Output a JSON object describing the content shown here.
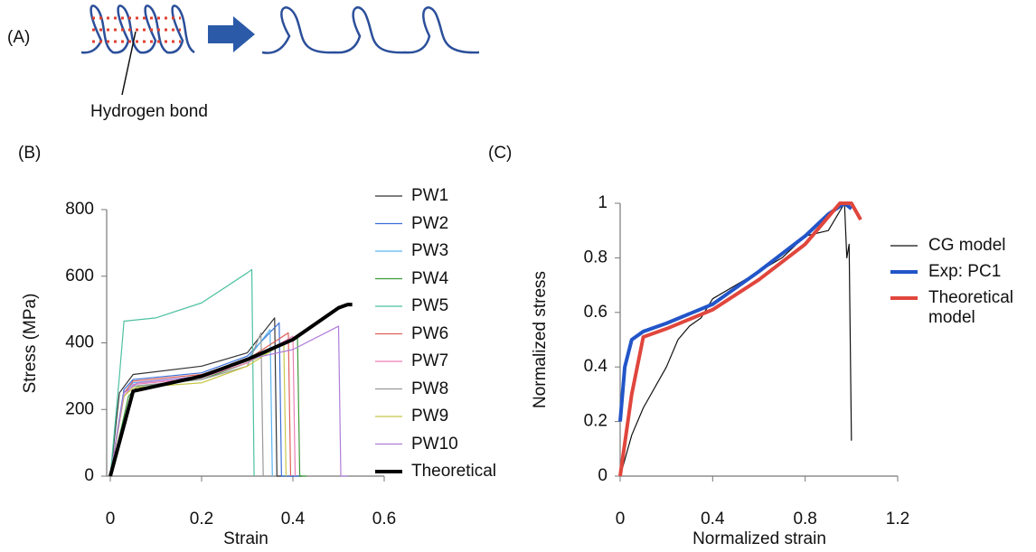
{
  "figure": {
    "panel_label": "(A)",
    "annotation": "Hydrogen bond"
  },
  "chart_data": [
    {
      "type": "line",
      "title": "(B)",
      "x_label": "Strain",
      "y_label": "Stress (MPa)",
      "xlim": [
        0,
        0.6
      ],
      "ylim": [
        0,
        800
      ],
      "xticks": [
        0,
        0.2,
        0.4,
        0.6
      ],
      "yticks": [
        0,
        200,
        400,
        600,
        800
      ],
      "series": [
        {
          "name": "PW1",
          "color": "#333333",
          "x": [
            0,
            0.02,
            0.05,
            0.2,
            0.3,
            0.36,
            0.365,
            0.42
          ],
          "values": [
            0,
            250,
            305,
            330,
            370,
            475,
            0,
            0
          ]
        },
        {
          "name": "PW2",
          "color": "#3a6fd8",
          "x": [
            0,
            0.03,
            0.05,
            0.2,
            0.3,
            0.37,
            0.375,
            0.42
          ],
          "values": [
            0,
            260,
            290,
            310,
            360,
            460,
            0,
            0
          ]
        },
        {
          "name": "PW3",
          "color": "#5ab4f0",
          "x": [
            0,
            0.03,
            0.05,
            0.2,
            0.3,
            0.35,
            0.355
          ],
          "values": [
            0,
            250,
            280,
            300,
            350,
            440,
            0
          ]
        },
        {
          "name": "PW4",
          "color": "#3c9a3c",
          "x": [
            0,
            0.04,
            0.06,
            0.2,
            0.3,
            0.41,
            0.415,
            0.43
          ],
          "values": [
            0,
            240,
            270,
            290,
            340,
            420,
            0,
            0
          ]
        },
        {
          "name": "PW5",
          "color": "#4cc0a0",
          "x": [
            0,
            0.02,
            0.03,
            0.1,
            0.2,
            0.3,
            0.31,
            0.315
          ],
          "values": [
            0,
            300,
            465,
            475,
            520,
            610,
            620,
            0
          ]
        },
        {
          "name": "PW6",
          "color": "#e0605a",
          "x": [
            0,
            0.03,
            0.05,
            0.2,
            0.3,
            0.39,
            0.395
          ],
          "values": [
            0,
            250,
            285,
            305,
            350,
            430,
            0
          ]
        },
        {
          "name": "PW7",
          "color": "#ec7fb4",
          "x": [
            0,
            0.03,
            0.05,
            0.2,
            0.3,
            0.4,
            0.405
          ],
          "values": [
            0,
            240,
            275,
            295,
            340,
            420,
            0
          ]
        },
        {
          "name": "PW8",
          "color": "#999999",
          "x": [
            0,
            0.03,
            0.05,
            0.2,
            0.3,
            0.33,
            0.335
          ],
          "values": [
            0,
            250,
            270,
            290,
            330,
            430,
            0
          ]
        },
        {
          "name": "PW9",
          "color": "#c8c84a",
          "x": [
            0,
            0.03,
            0.05,
            0.2,
            0.3,
            0.38,
            0.385
          ],
          "values": [
            0,
            240,
            265,
            280,
            330,
            400,
            0
          ]
        },
        {
          "name": "PW10",
          "color": "#b07cd8",
          "x": [
            0,
            0.03,
            0.06,
            0.2,
            0.3,
            0.4,
            0.5,
            0.505,
            0.52
          ],
          "values": [
            0,
            250,
            280,
            300,
            350,
            380,
            450,
            0,
            0
          ]
        },
        {
          "name": "Theoretical",
          "color": "#000000",
          "x": [
            0,
            0.05,
            0.1,
            0.2,
            0.3,
            0.4,
            0.5,
            0.52,
            0.53
          ],
          "values": [
            0,
            255,
            270,
            300,
            350,
            410,
            505,
            515,
            515
          ]
        }
      ]
    },
    {
      "type": "line",
      "title": "(C)",
      "x_label": "Normalized strain",
      "y_label": "Normalized stress",
      "xlim": [
        0,
        1.2
      ],
      "ylim": [
        0,
        1
      ],
      "xticks": [
        0,
        0.4,
        0.8,
        1.2
      ],
      "yticks": [
        0,
        0.2,
        0.4,
        0.6,
        0.8,
        1
      ],
      "series": [
        {
          "name": "CG model",
          "color": "#111111",
          "x": [
            0,
            0.05,
            0.1,
            0.2,
            0.25,
            0.3,
            0.35,
            0.4,
            0.5,
            0.6,
            0.7,
            0.8,
            0.9,
            0.97,
            0.98,
            0.99,
            1
          ],
          "values": [
            0,
            0.15,
            0.25,
            0.4,
            0.5,
            0.55,
            0.58,
            0.65,
            0.7,
            0.75,
            0.8,
            0.88,
            0.9,
            1,
            0.8,
            0.85,
            0.13
          ]
        },
        {
          "name": "Exp: PC1",
          "color": "#2255c8",
          "x": [
            0,
            0.02,
            0.05,
            0.1,
            0.2,
            0.4,
            0.6,
            0.8,
            0.9,
            0.97,
            1
          ],
          "values": [
            0.2,
            0.4,
            0.5,
            0.53,
            0.56,
            0.63,
            0.75,
            0.88,
            0.96,
            1,
            0.98
          ]
        },
        {
          "name": "Theoretical\nmodel",
          "color": "#e0463c",
          "x": [
            0,
            0.05,
            0.1,
            0.2,
            0.4,
            0.6,
            0.8,
            0.95,
            1,
            1.04
          ],
          "values": [
            0,
            0.3,
            0.51,
            0.54,
            0.61,
            0.72,
            0.85,
            1,
            1,
            0.94
          ]
        }
      ]
    }
  ]
}
